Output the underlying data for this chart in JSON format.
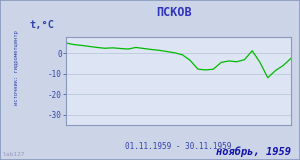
{
  "title": "ПСКОВ",
  "ylabel": "t,°C",
  "xlabel": "01.11.1959 - 30.11.1959",
  "footer": "ноябрь, 1959",
  "watermark": "lab127",
  "source_label": "источник: гидрометцентр",
  "ylim": [
    -35,
    8
  ],
  "yticks": [
    0,
    -10,
    -20,
    -30
  ],
  "bg_color": "#ccd4e8",
  "plot_bg": "#dde4f4",
  "line_color": "#00bb00",
  "border_color": "#8899bb",
  "title_color": "#3333bb",
  "footer_color": "#1111aa",
  "label_color": "#3344aa",
  "watermark_color": "#9999bb",
  "grid_color": "#aabbcc",
  "days": [
    1,
    2,
    3,
    4,
    5,
    6,
    7,
    8,
    9,
    10,
    11,
    12,
    13,
    14,
    15,
    16,
    17,
    18,
    19,
    20,
    21,
    22,
    23,
    24,
    25,
    26,
    27,
    28,
    29,
    30
  ],
  "temps": [
    5.0,
    4.2,
    3.8,
    3.3,
    2.8,
    2.4,
    2.6,
    2.3,
    2.0,
    2.8,
    2.3,
    1.8,
    1.4,
    0.8,
    0.2,
    -0.8,
    -3.5,
    -7.8,
    -8.2,
    -7.8,
    -4.5,
    -3.8,
    -4.2,
    -3.2,
    1.2,
    -4.5,
    -12.0,
    -8.5,
    -6.0,
    -2.5
  ]
}
